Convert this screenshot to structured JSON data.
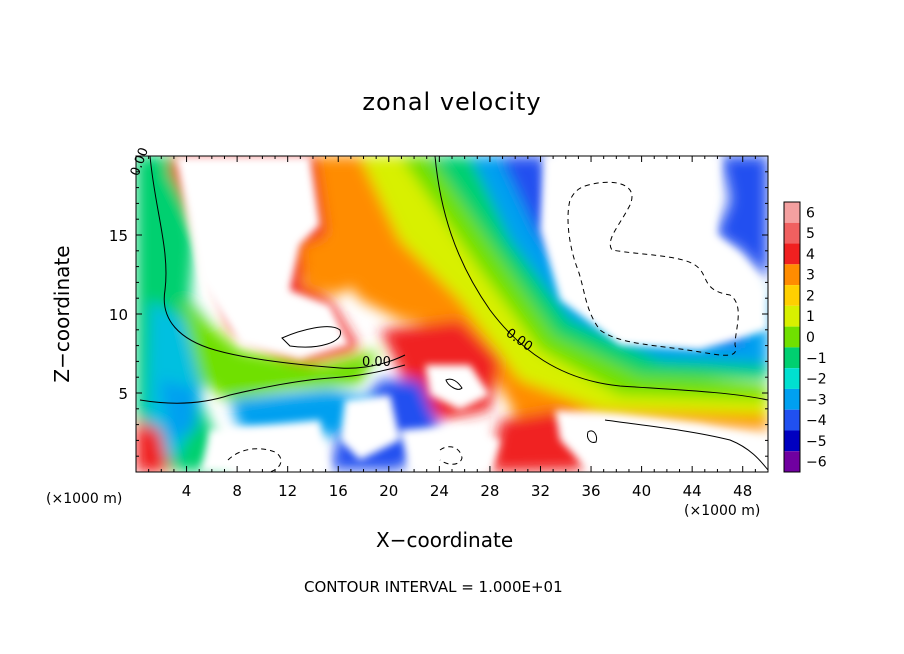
{
  "chart_data": {
    "type": "heatmap",
    "title": "zonal velocity",
    "xlabel": "X−coordinate",
    "ylabel": "Z−coordinate",
    "x_unit_left": "(×1000 m)",
    "x_unit_right": "(×1000 m)",
    "xlim": [
      0,
      50
    ],
    "ylim": [
      0,
      20
    ],
    "x_ticks": [
      4,
      8,
      12,
      16,
      20,
      24,
      28,
      32,
      36,
      40,
      44,
      48
    ],
    "y_ticks": [
      5,
      10,
      15
    ],
    "colorbar": {
      "levels": [
        6,
        5,
        4,
        3,
        2,
        1,
        0,
        -1,
        -2,
        -3,
        -4,
        -5,
        -6
      ],
      "labels": [
        "6",
        "5",
        "4",
        "3",
        "2",
        "1",
        "0",
        "−1",
        "−2",
        "−3",
        "−4",
        "−5",
        "−6"
      ],
      "colors": [
        "#f4a0a0",
        "#f06060",
        "#f02020",
        "#ff8c00",
        "#ffd000",
        "#d8f000",
        "#70e000",
        "#00d070",
        "#00e0d0",
        "#00a0f0",
        "#2050f0",
        "#0000c0",
        "#7000a0"
      ]
    },
    "contour_labels": [
      "0.00",
      "0.00",
      "0.00"
    ],
    "footnote": "CONTOUR INTERVAL = 1.000E+01",
    "grid": false,
    "legend": "right"
  }
}
